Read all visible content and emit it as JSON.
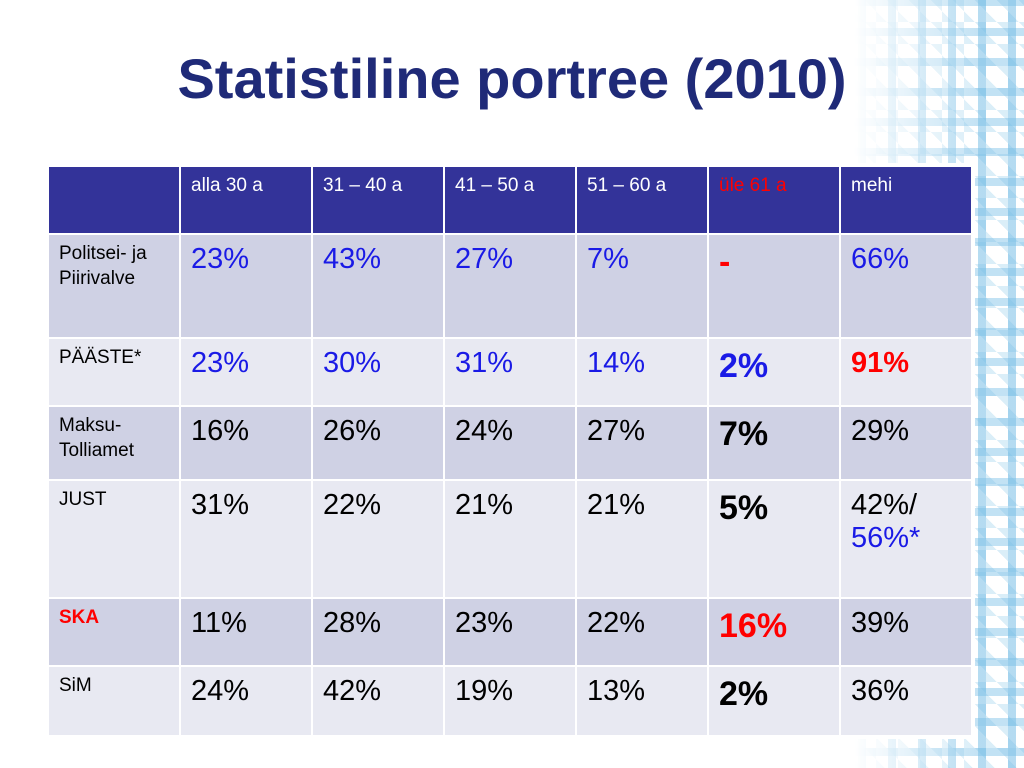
{
  "slide": {
    "title": "Statistiline portree (2010)"
  },
  "table": {
    "headers": [
      "",
      "alla 30 a",
      "31 – 40 a",
      "41 – 50 a",
      "51 – 60 a",
      "üle 61 a",
      "mehi"
    ],
    "rows": [
      {
        "label": "Politsei- ja Piirivalve",
        "values": [
          "23%",
          "43%",
          "27%",
          "7%",
          "-",
          "66%"
        ]
      },
      {
        "label": "PÄÄSTE*",
        "values": [
          "23%",
          "30%",
          "31%",
          "14%",
          "2%",
          "91%"
        ]
      },
      {
        "label": "Maksu- Tolliamet",
        "values": [
          "16%",
          "26%",
          "24%",
          "27%",
          "7%",
          "29%"
        ]
      },
      {
        "label": "JUST",
        "values": [
          "31%",
          "22%",
          "21%",
          "21%",
          "5%",
          "42%/"
        ],
        "extra": "56%*"
      },
      {
        "label": "SKA",
        "values": [
          "11%",
          "28%",
          "23%",
          "22%",
          "16%",
          "39%"
        ]
      },
      {
        "label": "SiM",
        "values": [
          "24%",
          "42%",
          "19%",
          "13%",
          "2%",
          "36%"
        ]
      }
    ]
  },
  "colors": {
    "title": "#1f2a78",
    "header_bg": "#333399",
    "highlight_red": "#ff0000",
    "value_blue": "#1a1ae6",
    "row_bg_dark": "#cfd1e4",
    "row_bg_light": "#e8e9f2"
  }
}
